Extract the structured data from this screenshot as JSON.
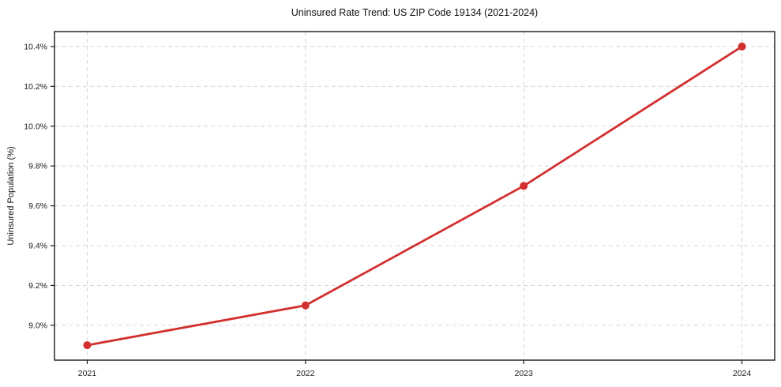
{
  "chart_data": {
    "type": "line",
    "title": "Uninsured Rate Trend: US ZIP Code 19134 (2021-2024)",
    "xlabel": "",
    "ylabel": "Uninsured Population (%)",
    "categories": [
      2021,
      2022,
      2023,
      2024
    ],
    "series": [
      {
        "name": "Uninsured Population (%)",
        "values": [
          8.9,
          9.1,
          9.7,
          10.4
        ]
      }
    ],
    "x_tick_labels": [
      "2021",
      "2022",
      "2023",
      "2024"
    ],
    "y_tick_values": [
      9.0,
      9.2,
      9.4,
      9.6,
      9.8,
      10.0,
      10.2,
      10.4
    ],
    "y_tick_labels": [
      "9.0%",
      "9.2%",
      "9.4%",
      "9.6%",
      "9.8%",
      "10.0%",
      "10.2%",
      "10.4%"
    ],
    "xlim": [
      2020.85,
      2024.15
    ],
    "ylim": [
      8.825,
      10.475
    ],
    "grid": "both-dashed",
    "legend": "none",
    "marker": "circle",
    "colors": {
      "line": "#d32f2f",
      "grid": "#d6d6d6",
      "spine": "#1a1a1a",
      "text": "#1a1a1a",
      "background": "#ffffff"
    }
  }
}
